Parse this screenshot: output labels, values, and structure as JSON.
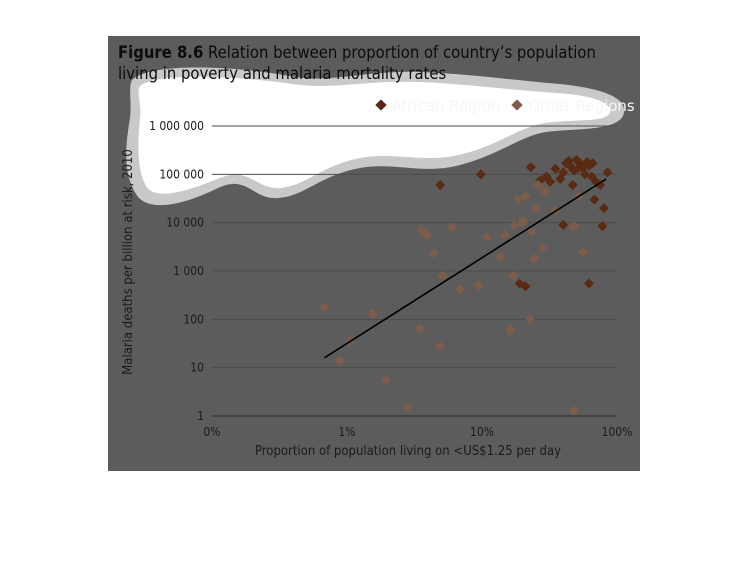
{
  "figure": {
    "label": "Figure 8.6",
    "caption": "Relation between proportion of country’s population living in poverty and malaria mortality rates"
  },
  "colors": {
    "panel": "#5c5c5c",
    "cloud": "#ffffff",
    "cloud_edge": "#c9c9c9",
    "african": "#5a2a12",
    "other": "#7d5d49",
    "trendline": "#000000"
  },
  "chart_data": {
    "type": "scatter",
    "xlabel": "Proportion of population living on <US$1.25 per day",
    "ylabel": "Malaria deaths per billion at risk, 2010",
    "x_scale": "log",
    "y_scale": "log",
    "xlim": [
      0.1,
      100
    ],
    "ylim": [
      1,
      1000000
    ],
    "x_ticks": [
      "0%",
      "1%",
      "10%",
      "100%"
    ],
    "y_ticks": [
      "1",
      "10",
      "100",
      "1 000",
      "10 000",
      "100 000",
      "1 000 000"
    ],
    "grid": "horizontal",
    "legend": {
      "position": "top-right",
      "entries": [
        "African Region",
        "Other Regions"
      ]
    },
    "series": [
      {
        "name": "African Region",
        "points": [
          [
            4.9,
            60000
          ],
          [
            9.8,
            100000
          ],
          [
            23,
            140000
          ],
          [
            27,
            75000
          ],
          [
            30,
            90000
          ],
          [
            32,
            70000
          ],
          [
            35,
            130000
          ],
          [
            38,
            80000
          ],
          [
            40,
            110000
          ],
          [
            42,
            170000
          ],
          [
            45,
            150000
          ],
          [
            47,
            60000
          ],
          [
            50,
            200000
          ],
          [
            52,
            180000
          ],
          [
            54,
            160000
          ],
          [
            56,
            140000
          ],
          [
            58,
            100000
          ],
          [
            60,
            180000
          ],
          [
            62,
            150000
          ],
          [
            65,
            90000
          ],
          [
            66,
            170000
          ],
          [
            70,
            70000
          ],
          [
            75,
            60000
          ],
          [
            85,
            110000
          ],
          [
            68,
            30000
          ],
          [
            80,
            20000
          ],
          [
            78,
            8500
          ],
          [
            62,
            550
          ],
          [
            19,
            550
          ],
          [
            21,
            480
          ],
          [
            40,
            9000
          ],
          [
            55,
            140000
          ],
          [
            48,
            120000
          ],
          [
            44,
            190000
          ],
          [
            51,
            130000
          ]
        ]
      },
      {
        "name": "Other Regions",
        "points": [
          [
            0.68,
            180
          ],
          [
            0.88,
            14
          ],
          [
            1.05,
            35
          ],
          [
            1.55,
            130
          ],
          [
            1.95,
            5.5
          ],
          [
            2.8,
            1.5
          ],
          [
            3.5,
            65
          ],
          [
            3.6,
            7000
          ],
          [
            3.9,
            5500
          ],
          [
            4.4,
            2300
          ],
          [
            4.9,
            28
          ],
          [
            5.1,
            800
          ],
          [
            6.0,
            8000
          ],
          [
            6.9,
            420
          ],
          [
            9.4,
            500
          ],
          [
            10.9,
            5000
          ],
          [
            13.8,
            2000
          ],
          [
            14.8,
            5500
          ],
          [
            16.2,
            60
          ],
          [
            17.0,
            800
          ],
          [
            17.3,
            9000
          ],
          [
            18.4,
            30000
          ],
          [
            20.0,
            10000
          ],
          [
            21.0,
            35000
          ],
          [
            22.6,
            100
          ],
          [
            23.5,
            6500
          ],
          [
            24.4,
            1800
          ],
          [
            25.0,
            20000
          ],
          [
            28.0,
            3000
          ],
          [
            29.0,
            45000
          ],
          [
            35.0,
            18000
          ],
          [
            48.0,
            8500
          ],
          [
            48.0,
            1.3
          ],
          [
            52.0,
            35000
          ],
          [
            56.0,
            2500
          ],
          [
            20.0,
            11000
          ],
          [
            26.0,
            60000
          ]
        ]
      }
    ],
    "trendline": {
      "from": [
        0.68,
        16
      ],
      "to": [
        83,
        80000
      ]
    }
  }
}
